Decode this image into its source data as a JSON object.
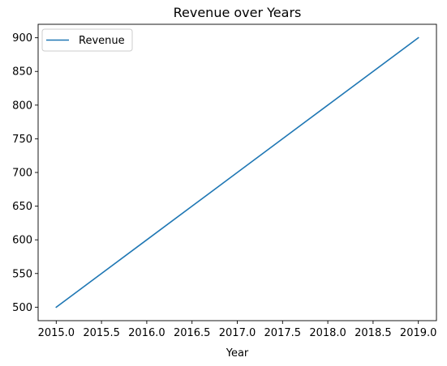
{
  "chart_data": {
    "type": "line",
    "title": "Revenue over Years",
    "xlabel": "Year",
    "ylabel": "",
    "x": [
      2015,
      2016,
      2017,
      2018,
      2019
    ],
    "series": [
      {
        "name": "Revenue",
        "values": [
          500,
          600,
          700,
          800,
          900
        ],
        "color": "#1f77b4"
      }
    ],
    "xlim": [
      2014.8,
      2019.2
    ],
    "ylim": [
      480,
      920
    ],
    "x_ticks": [
      "2015.0",
      "2015.5",
      "2016.0",
      "2016.5",
      "2017.0",
      "2017.5",
      "2018.0",
      "2018.5",
      "2019.0"
    ],
    "y_ticks": [
      "500",
      "550",
      "600",
      "650",
      "700",
      "750",
      "800",
      "850",
      "900"
    ],
    "grid": false,
    "legend_position": "upper-left"
  }
}
